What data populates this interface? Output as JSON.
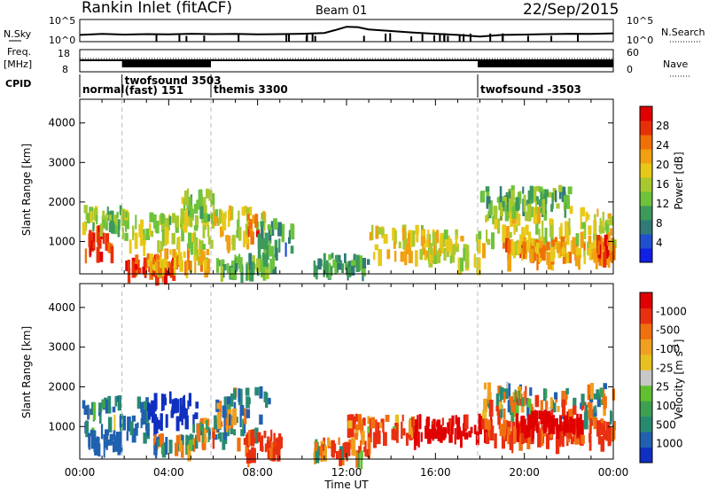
{
  "header": {
    "station": "Rankin Inlet (fitACF)",
    "beam": "Beam 01",
    "date": "22/Sep/2015"
  },
  "time_axis": {
    "label": "Time UT",
    "ticks": [
      "00:00",
      "04:00",
      "08:00",
      "12:00",
      "16:00",
      "20:00",
      "00:00"
    ],
    "range_hours": [
      0,
      24
    ]
  },
  "top_panels": {
    "nsky": {
      "label": "N.Sky",
      "ticks": [
        "10^5",
        "10^0"
      ],
      "right_label": "N.Search",
      "right_ticks": [
        "10^5",
        "10^0"
      ]
    },
    "freq": {
      "label_line1": "Freq.",
      "label_line2": "[MHz]",
      "ticks": [
        "18",
        "8"
      ],
      "right_label": "Nave",
      "right_ticks": [
        "60",
        "0"
      ]
    },
    "cpid": {
      "label": "CPID",
      "modes": [
        {
          "name": "normal",
          "start": 0.0
        },
        {
          "name": "twofsound 3503",
          "sub": "(fast) 151",
          "start": 1.9
        },
        {
          "name": "themis 3300",
          "start": 5.9
        },
        {
          "name": "twofsound -3503",
          "start": 17.9
        }
      ]
    }
  },
  "chart_data": [
    {
      "type": "heatmap",
      "name": "power",
      "ylabel": "Slant Range [km]",
      "xlabel": "Time UT",
      "xlim": [
        0,
        24
      ],
      "ylim": [
        180,
        4600
      ],
      "yticks": [
        1000,
        2000,
        3000,
        4000
      ],
      "colorbar": {
        "label": "Power [dB]",
        "ticks": [
          "4",
          "8",
          "12",
          "16",
          "20",
          "24",
          "28"
        ],
        "colors": [
          "#1020e6",
          "#2050d0",
          "#307a78",
          "#3c9a5a",
          "#6ec23c",
          "#a8c830",
          "#e8c818",
          "#f0a010",
          "#f07008",
          "#e83008",
          "#e00000"
        ]
      },
      "regions": [
        {
          "t": [
            0.1,
            1.4
          ],
          "r": [
            700,
            1400
          ],
          "v": 28
        },
        {
          "t": [
            0.1,
            1.9
          ],
          "r": [
            1400,
            1900
          ],
          "v": 14
        },
        {
          "t": [
            1.9,
            6.0
          ],
          "r": [
            900,
            1800
          ],
          "v": 16
        },
        {
          "t": [
            2.0,
            4.3
          ],
          "r": [
            250,
            650
          ],
          "v": 27
        },
        {
          "t": [
            3.0,
            5.8
          ],
          "r": [
            450,
            800
          ],
          "v": 20
        },
        {
          "t": [
            4.0,
            6.0
          ],
          "r": [
            1600,
            2400
          ],
          "v": 14
        },
        {
          "t": [
            6.0,
            8.3
          ],
          "r": [
            1000,
            1900
          ],
          "v": 18
        },
        {
          "t": [
            7.5,
            8.0
          ],
          "r": [
            1200,
            1700
          ],
          "v": 25
        },
        {
          "t": [
            6.1,
            8.7
          ],
          "r": [
            300,
            700
          ],
          "v": 12
        },
        {
          "t": [
            8.0,
            9.5
          ],
          "r": [
            800,
            1600
          ],
          "v": 10
        },
        {
          "t": [
            13.0,
            16.0
          ],
          "r": [
            700,
            1400
          ],
          "v": 18
        },
        {
          "t": [
            16.0,
            18.0
          ],
          "r": [
            500,
            1300
          ],
          "v": 17
        },
        {
          "t": [
            18.0,
            24.0
          ],
          "r": [
            800,
            1900
          ],
          "v": 18
        },
        {
          "t": [
            19.0,
            24.0
          ],
          "r": [
            600,
            1100
          ],
          "v": 22
        },
        {
          "t": [
            23.2,
            24.0
          ],
          "r": [
            700,
            1200
          ],
          "v": 27
        },
        {
          "t": [
            18.0,
            22.0
          ],
          "r": [
            1900,
            2400
          ],
          "v": 12
        },
        {
          "t": [
            10.5,
            13.0
          ],
          "r": [
            300,
            700
          ],
          "v": 10
        }
      ]
    },
    {
      "type": "heatmap",
      "name": "velocity",
      "ylabel": "Slant Range [km]",
      "xlabel": "Time UT",
      "xlim": [
        0,
        24
      ],
      "ylim": [
        180,
        4600
      ],
      "yticks": [
        1000,
        2000,
        3000,
        4000
      ],
      "colorbar": {
        "label": "Velocity [m s^-1]",
        "ticks": [
          "1000",
          "500",
          "100",
          "25",
          "-25",
          "-100",
          "-500",
          "-1000"
        ],
        "colors": [
          "#1030c0",
          "#2060b0",
          "#2a8a70",
          "#3ca050",
          "#60c030",
          "#c8c8c8",
          "#e8c020",
          "#f0a020",
          "#f07010",
          "#e83010",
          "#e00000"
        ]
      },
      "regions": [
        {
          "t": [
            0.1,
            1.8
          ],
          "r": [
            800,
            1800
          ],
          "v": 150
        },
        {
          "t": [
            0.3,
            1.8
          ],
          "r": [
            500,
            900
          ],
          "v": 300
        },
        {
          "t": [
            1.9,
            3.0
          ],
          "r": [
            600,
            1800
          ],
          "v": 200
        },
        {
          "t": [
            3.0,
            5.2
          ],
          "r": [
            1100,
            1900
          ],
          "v": 700
        },
        {
          "t": [
            3.3,
            5.2
          ],
          "r": [
            500,
            800
          ],
          "v": 60
        },
        {
          "t": [
            5.0,
            6.5
          ],
          "r": [
            700,
            1200
          ],
          "v": 0
        },
        {
          "t": [
            6.0,
            8.5
          ],
          "r": [
            900,
            2000
          ],
          "v": 100
        },
        {
          "t": [
            7.0,
            9.0
          ],
          "r": [
            300,
            900
          ],
          "v": -200
        },
        {
          "t": [
            12.0,
            15.0
          ],
          "r": [
            800,
            1300
          ],
          "v": -150
        },
        {
          "t": [
            15.0,
            18.5
          ],
          "r": [
            800,
            1300
          ],
          "v": -600
        },
        {
          "t": [
            18.0,
            24.0
          ],
          "r": [
            1300,
            2100
          ],
          "v": 0
        },
        {
          "t": [
            18.0,
            24.0
          ],
          "r": [
            700,
            1200
          ],
          "v": -200
        },
        {
          "t": [
            19.5,
            22.5
          ],
          "r": [
            1000,
            1400
          ],
          "v": -700
        },
        {
          "t": [
            10.5,
            13.0
          ],
          "r": [
            300,
            700
          ],
          "v": -100
        }
      ]
    },
    {
      "type": "line",
      "name": "n-sky",
      "x": [
        0,
        1,
        2,
        3,
        4,
        5,
        6,
        7,
        8,
        9,
        10,
        11,
        11.5,
        12,
        12.5,
        13,
        14,
        15,
        16,
        17,
        18,
        19,
        20,
        21,
        22,
        23,
        24
      ],
      "y": [
        0.3,
        0.35,
        0.32,
        0.34,
        0.33,
        0.36,
        0.34,
        0.35,
        0.33,
        0.34,
        0.36,
        0.4,
        0.55,
        0.72,
        0.7,
        0.58,
        0.5,
        0.42,
        0.36,
        0.3,
        0.22,
        0.3,
        0.32,
        0.34,
        0.36,
        0.35,
        0.38
      ],
      "ylim": [
        0,
        1
      ]
    }
  ]
}
